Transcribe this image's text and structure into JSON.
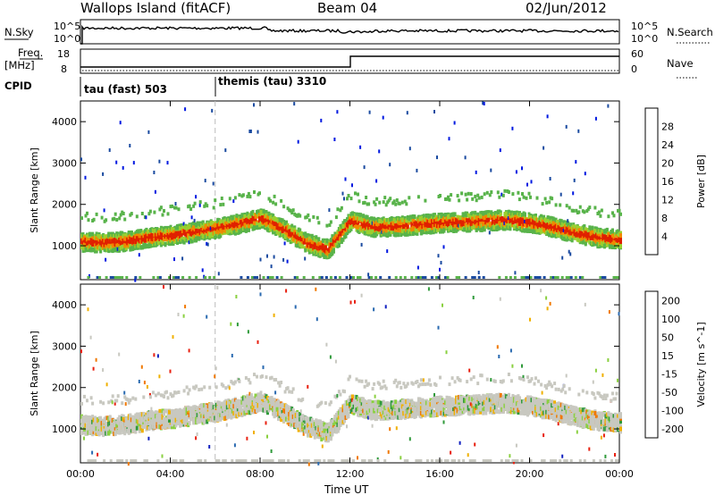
{
  "header": {
    "station": "Wallops Island (fitACF)",
    "beam": "Beam 04",
    "date": "02/Jun/2012"
  },
  "strip": {
    "nsky_label": "N.Sky",
    "nsky_ticks": [
      "10^5",
      "10^0"
    ],
    "nsearch_label": "N.Search",
    "nsearch_ticks": [
      "10^5",
      "10^0"
    ],
    "freq_label": "Freq.",
    "freq_unit": "[MHz]",
    "freq_ticks": [
      "18",
      "8"
    ],
    "nave_label": "Nave",
    "nave_ticks": [
      "60",
      "0"
    ],
    "cpid_label": "CPID",
    "cpid_segments": [
      "tau (fast) 503",
      "themis (tau) 3310"
    ]
  },
  "chart_data": [
    {
      "type": "heatmap",
      "name": "power",
      "ylabel": "Slant Range [km]",
      "xlabel": "Time UT",
      "x_ticks": [
        "00:00",
        "04:00",
        "08:00",
        "12:00",
        "16:00",
        "20:00",
        "00:00"
      ],
      "y_ticks": [
        "1000",
        "2000",
        "3000",
        "4000"
      ],
      "ylim": [
        180,
        4500
      ],
      "xlim_hours": [
        0,
        24
      ],
      "colorbar_label": "Power [dB]",
      "colorbar_ticks": [
        "4",
        "8",
        "12",
        "16",
        "20",
        "24",
        "28"
      ],
      "colors": [
        "#0018e0",
        "#1a4aa0",
        "#2f7f6a",
        "#58b34a",
        "#9ad030",
        "#f0d000",
        "#f08a00",
        "#e02000"
      ],
      "main_band_km": [
        [
          0,
          1150
        ],
        [
          1,
          1120
        ],
        [
          2,
          1160
        ],
        [
          3,
          1250
        ],
        [
          4,
          1300
        ],
        [
          5,
          1380
        ],
        [
          6,
          1470
        ],
        [
          7,
          1580
        ],
        [
          8,
          1720
        ],
        [
          9,
          1450
        ],
        [
          10,
          1120
        ],
        [
          11,
          960
        ],
        [
          12,
          1650
        ],
        [
          13,
          1500
        ],
        [
          14,
          1520
        ],
        [
          15,
          1560
        ],
        [
          16,
          1600
        ],
        [
          17,
          1620
        ],
        [
          18,
          1650
        ],
        [
          19,
          1680
        ],
        [
          20,
          1600
        ],
        [
          21,
          1500
        ],
        [
          22,
          1350
        ],
        [
          23,
          1250
        ],
        [
          24,
          1200
        ]
      ]
    },
    {
      "type": "heatmap",
      "name": "velocity",
      "ylabel": "Slant Range [km]",
      "x_ticks": [
        "00:00",
        "04:00",
        "08:00",
        "12:00",
        "16:00",
        "20:00",
        "00:00"
      ],
      "y_ticks": [
        "1000",
        "2000",
        "3000",
        "4000"
      ],
      "ylim": [
        180,
        4500
      ],
      "colorbar_label": "Velocity [m s^-1]",
      "colorbar_ticks": [
        "200",
        "100",
        "50",
        "15",
        "-15",
        "-50",
        "-100",
        "-200"
      ],
      "colors": [
        "#1020c0",
        "#2a6ab0",
        "#2f9a3a",
        "#8ad040",
        "#c8c8c0",
        "#f0b000",
        "#f07800",
        "#e82010"
      ]
    }
  ]
}
